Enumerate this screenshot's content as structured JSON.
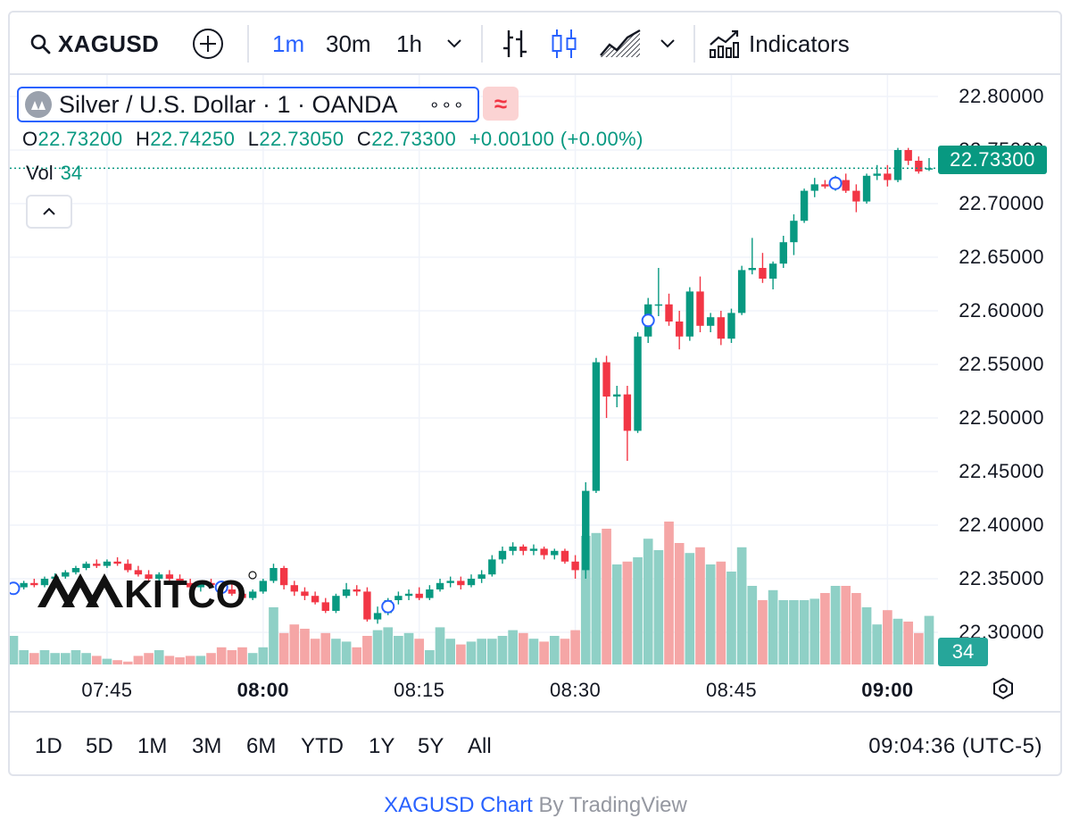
{
  "toolbar": {
    "symbol": "XAGUSD",
    "intervals": [
      "1m",
      "30m",
      "1h"
    ],
    "active_interval": "1m",
    "indicators_label": "Indicators"
  },
  "legend": {
    "title": "Silver / U.S. Dollar · 1 · OANDA",
    "more": "∘∘∘",
    "approx_badge": "≈",
    "open_key": "O",
    "open": "22.73200",
    "high_key": "H",
    "high": "22.74250",
    "low_key": "L",
    "low": "22.73050",
    "close_key": "C",
    "close": "22.73300",
    "change": "+0.00100 (+0.00%)",
    "vol_label": "Vol",
    "vol_value": "34"
  },
  "price_axis": {
    "labels": [
      "22.80000",
      "22.75000",
      "22.70000",
      "22.65000",
      "22.60000",
      "22.55000",
      "22.50000",
      "22.45000",
      "22.40000",
      "22.35000",
      "22.30000"
    ],
    "current_price": "22.73300",
    "current_volume": "34"
  },
  "time_axis": {
    "labels": [
      {
        "text": "07:45",
        "bold": false
      },
      {
        "text": "08:00",
        "bold": true
      },
      {
        "text": "08:15",
        "bold": false
      },
      {
        "text": "08:30",
        "bold": false
      },
      {
        "text": "08:45",
        "bold": false
      },
      {
        "text": "09:00",
        "bold": true
      }
    ]
  },
  "range_bar": {
    "ranges": [
      "1D",
      "5D",
      "1M",
      "3M",
      "6M",
      "YTD",
      "1Y",
      "5Y",
      "All"
    ],
    "clock": "09:04:36 (UTC-5)"
  },
  "watermark": {
    "logo_text": "KITCO"
  },
  "attribution": {
    "link": "XAGUSD Chart",
    "rest": " By TradingView"
  },
  "colors": {
    "up": "#089981",
    "down": "#f23645",
    "accent": "#2962ff",
    "vol_up": "#8fd0c6",
    "vol_down": "#f5a6a6",
    "grid": "#f0f3fa"
  },
  "chart_data": {
    "type": "candlestick",
    "interval": "1m",
    "ylim": [
      22.27,
      22.81
    ],
    "x_start": "07:36",
    "x_end": "09:04",
    "current_price": 22.733,
    "price_line_style": "dotted",
    "event_markers_at": [
      "07:36",
      "07:56",
      "08:12",
      "08:37",
      "08:55"
    ],
    "candles": [
      {
        "t": "07:36",
        "o": 22.34,
        "h": 22.345,
        "l": 22.338,
        "c": 22.342,
        "v": 20
      },
      {
        "t": "07:37",
        "o": 22.342,
        "h": 22.348,
        "l": 22.34,
        "c": 22.346,
        "v": 10
      },
      {
        "t": "07:38",
        "o": 22.346,
        "h": 22.35,
        "l": 22.342,
        "c": 22.344,
        "v": 8
      },
      {
        "t": "07:39",
        "o": 22.344,
        "h": 22.352,
        "l": 22.342,
        "c": 22.35,
        "v": 10
      },
      {
        "t": "07:40",
        "o": 22.35,
        "h": 22.355,
        "l": 22.346,
        "c": 22.352,
        "v": 8
      },
      {
        "t": "07:41",
        "o": 22.352,
        "h": 22.358,
        "l": 22.35,
        "c": 22.356,
        "v": 8
      },
      {
        "t": "07:42",
        "o": 22.356,
        "h": 22.362,
        "l": 22.354,
        "c": 22.36,
        "v": 10
      },
      {
        "t": "07:43",
        "o": 22.36,
        "h": 22.366,
        "l": 22.358,
        "c": 22.364,
        "v": 8
      },
      {
        "t": "07:44",
        "o": 22.364,
        "h": 22.368,
        "l": 22.36,
        "c": 22.362,
        "v": 6
      },
      {
        "t": "07:45",
        "o": 22.362,
        "h": 22.368,
        "l": 22.36,
        "c": 22.366,
        "v": 4
      },
      {
        "t": "07:46",
        "o": 22.366,
        "h": 22.37,
        "l": 22.362,
        "c": 22.364,
        "v": 3
      },
      {
        "t": "07:47",
        "o": 22.364,
        "h": 22.368,
        "l": 22.356,
        "c": 22.358,
        "v": 2
      },
      {
        "t": "07:48",
        "o": 22.358,
        "h": 22.362,
        "l": 22.352,
        "c": 22.354,
        "v": 6
      },
      {
        "t": "07:49",
        "o": 22.354,
        "h": 22.358,
        "l": 22.348,
        "c": 22.35,
        "v": 8
      },
      {
        "t": "07:50",
        "o": 22.35,
        "h": 22.356,
        "l": 22.346,
        "c": 22.354,
        "v": 10
      },
      {
        "t": "07:51",
        "o": 22.354,
        "h": 22.358,
        "l": 22.348,
        "c": 22.35,
        "v": 6
      },
      {
        "t": "07:52",
        "o": 22.35,
        "h": 22.354,
        "l": 22.344,
        "c": 22.346,
        "v": 5
      },
      {
        "t": "07:53",
        "o": 22.346,
        "h": 22.35,
        "l": 22.34,
        "c": 22.342,
        "v": 6
      },
      {
        "t": "07:54",
        "o": 22.342,
        "h": 22.348,
        "l": 22.338,
        "c": 22.346,
        "v": 6
      },
      {
        "t": "07:55",
        "o": 22.346,
        "h": 22.35,
        "l": 22.342,
        "c": 22.344,
        "v": 8
      },
      {
        "t": "07:56",
        "o": 22.344,
        "h": 22.348,
        "l": 22.338,
        "c": 22.34,
        "v": 12
      },
      {
        "t": "07:57",
        "o": 22.34,
        "h": 22.346,
        "l": 22.334,
        "c": 22.336,
        "v": 10
      },
      {
        "t": "07:58",
        "o": 22.336,
        "h": 22.342,
        "l": 22.33,
        "c": 22.332,
        "v": 12
      },
      {
        "t": "07:59",
        "o": 22.332,
        "h": 22.34,
        "l": 22.33,
        "c": 22.338,
        "v": 8
      },
      {
        "t": "08:00",
        "o": 22.338,
        "h": 22.35,
        "l": 22.336,
        "c": 22.348,
        "v": 12
      },
      {
        "t": "08:01",
        "o": 22.348,
        "h": 22.364,
        "l": 22.346,
        "c": 22.36,
        "v": 40
      },
      {
        "t": "08:02",
        "o": 22.36,
        "h": 22.362,
        "l": 22.34,
        "c": 22.344,
        "v": 22
      },
      {
        "t": "08:03",
        "o": 22.344,
        "h": 22.348,
        "l": 22.334,
        "c": 22.338,
        "v": 28
      },
      {
        "t": "08:04",
        "o": 22.338,
        "h": 22.342,
        "l": 22.33,
        "c": 22.334,
        "v": 25
      },
      {
        "t": "08:05",
        "o": 22.334,
        "h": 22.338,
        "l": 22.326,
        "c": 22.328,
        "v": 18
      },
      {
        "t": "08:06",
        "o": 22.328,
        "h": 22.332,
        "l": 22.318,
        "c": 22.32,
        "v": 22
      },
      {
        "t": "08:07",
        "o": 22.32,
        "h": 22.336,
        "l": 22.318,
        "c": 22.334,
        "v": 18
      },
      {
        "t": "08:08",
        "o": 22.334,
        "h": 22.346,
        "l": 22.332,
        "c": 22.34,
        "v": 16
      },
      {
        "t": "08:09",
        "o": 22.34,
        "h": 22.344,
        "l": 22.334,
        "c": 22.338,
        "v": 12
      },
      {
        "t": "08:10",
        "o": 22.338,
        "h": 22.342,
        "l": 22.31,
        "c": 22.312,
        "v": 20
      },
      {
        "t": "08:11",
        "o": 22.312,
        "h": 22.324,
        "l": 22.308,
        "c": 22.318,
        "v": 24
      },
      {
        "t": "08:12",
        "o": 22.318,
        "h": 22.332,
        "l": 22.316,
        "c": 22.33,
        "v": 26
      },
      {
        "t": "08:13",
        "o": 22.33,
        "h": 22.338,
        "l": 22.326,
        "c": 22.334,
        "v": 20
      },
      {
        "t": "08:14",
        "o": 22.334,
        "h": 22.34,
        "l": 22.33,
        "c": 22.336,
        "v": 22
      },
      {
        "t": "08:15",
        "o": 22.336,
        "h": 22.342,
        "l": 22.33,
        "c": 22.332,
        "v": 18
      },
      {
        "t": "08:16",
        "o": 22.332,
        "h": 22.344,
        "l": 22.33,
        "c": 22.34,
        "v": 10
      },
      {
        "t": "08:17",
        "o": 22.34,
        "h": 22.35,
        "l": 22.338,
        "c": 22.346,
        "v": 26
      },
      {
        "t": "08:18",
        "o": 22.346,
        "h": 22.352,
        "l": 22.342,
        "c": 22.348,
        "v": 18
      },
      {
        "t": "08:19",
        "o": 22.348,
        "h": 22.352,
        "l": 22.34,
        "c": 22.344,
        "v": 14
      },
      {
        "t": "08:20",
        "o": 22.344,
        "h": 22.354,
        "l": 22.342,
        "c": 22.35,
        "v": 16
      },
      {
        "t": "08:21",
        "o": 22.35,
        "h": 22.358,
        "l": 22.346,
        "c": 22.354,
        "v": 18
      },
      {
        "t": "08:22",
        "o": 22.354,
        "h": 22.372,
        "l": 22.352,
        "c": 22.368,
        "v": 18
      },
      {
        "t": "08:23",
        "o": 22.368,
        "h": 22.38,
        "l": 22.364,
        "c": 22.376,
        "v": 20
      },
      {
        "t": "08:24",
        "o": 22.376,
        "h": 22.384,
        "l": 22.372,
        "c": 22.38,
        "v": 24
      },
      {
        "t": "08:25",
        "o": 22.38,
        "h": 22.382,
        "l": 22.372,
        "c": 22.376,
        "v": 22
      },
      {
        "t": "08:26",
        "o": 22.376,
        "h": 22.382,
        "l": 22.372,
        "c": 22.378,
        "v": 18
      },
      {
        "t": "08:27",
        "o": 22.378,
        "h": 22.38,
        "l": 22.368,
        "c": 22.372,
        "v": 16
      },
      {
        "t": "08:28",
        "o": 22.372,
        "h": 22.378,
        "l": 22.368,
        "c": 22.376,
        "v": 20
      },
      {
        "t": "08:29",
        "o": 22.376,
        "h": 22.378,
        "l": 22.364,
        "c": 22.366,
        "v": 18
      },
      {
        "t": "08:30",
        "o": 22.366,
        "h": 22.372,
        "l": 22.35,
        "c": 22.358,
        "v": 24
      },
      {
        "t": "08:31",
        "o": 22.358,
        "h": 22.44,
        "l": 22.35,
        "c": 22.432,
        "v": 90
      },
      {
        "t": "08:32",
        "o": 22.432,
        "h": 22.556,
        "l": 22.43,
        "c": 22.552,
        "v": 92
      },
      {
        "t": "08:33",
        "o": 22.552,
        "h": 22.558,
        "l": 22.5,
        "c": 22.52,
        "v": 95
      },
      {
        "t": "08:34",
        "o": 22.52,
        "h": 22.53,
        "l": 22.51,
        "c": 22.522,
        "v": 70
      },
      {
        "t": "08:35",
        "o": 22.522,
        "h": 22.53,
        "l": 22.46,
        "c": 22.488,
        "v": 72
      },
      {
        "t": "08:36",
        "o": 22.488,
        "h": 22.58,
        "l": 22.486,
        "c": 22.576,
        "v": 75
      },
      {
        "t": "08:37",
        "o": 22.576,
        "h": 22.612,
        "l": 22.57,
        "c": 22.606,
        "v": 88
      },
      {
        "t": "08:38",
        "o": 22.606,
        "h": 22.64,
        "l": 22.595,
        "c": 22.606,
        "v": 80
      },
      {
        "t": "08:39",
        "o": 22.606,
        "h": 22.616,
        "l": 22.586,
        "c": 22.59,
        "v": 100
      },
      {
        "t": "08:40",
        "o": 22.59,
        "h": 22.6,
        "l": 22.564,
        "c": 22.576,
        "v": 85
      },
      {
        "t": "08:41",
        "o": 22.576,
        "h": 22.622,
        "l": 22.572,
        "c": 22.618,
        "v": 78
      },
      {
        "t": "08:42",
        "o": 22.618,
        "h": 22.632,
        "l": 22.58,
        "c": 22.586,
        "v": 82
      },
      {
        "t": "08:43",
        "o": 22.586,
        "h": 22.598,
        "l": 22.58,
        "c": 22.594,
        "v": 70
      },
      {
        "t": "08:44",
        "o": 22.594,
        "h": 22.6,
        "l": 22.568,
        "c": 22.574,
        "v": 72
      },
      {
        "t": "08:45",
        "o": 22.574,
        "h": 22.602,
        "l": 22.57,
        "c": 22.598,
        "v": 65
      },
      {
        "t": "08:46",
        "o": 22.598,
        "h": 22.642,
        "l": 22.596,
        "c": 22.638,
        "v": 82
      },
      {
        "t": "08:47",
        "o": 22.638,
        "h": 22.668,
        "l": 22.634,
        "c": 22.64,
        "v": 55
      },
      {
        "t": "08:48",
        "o": 22.64,
        "h": 22.654,
        "l": 22.626,
        "c": 22.63,
        "v": 45
      },
      {
        "t": "08:49",
        "o": 22.63,
        "h": 22.646,
        "l": 22.62,
        "c": 22.644,
        "v": 52
      },
      {
        "t": "08:50",
        "o": 22.644,
        "h": 22.67,
        "l": 22.64,
        "c": 22.664,
        "v": 45
      },
      {
        "t": "08:51",
        "o": 22.664,
        "h": 22.69,
        "l": 22.652,
        "c": 22.684,
        "v": 45
      },
      {
        "t": "08:52",
        "o": 22.684,
        "h": 22.714,
        "l": 22.682,
        "c": 22.712,
        "v": 45
      },
      {
        "t": "08:53",
        "o": 22.712,
        "h": 22.724,
        "l": 22.706,
        "c": 22.718,
        "v": 46
      },
      {
        "t": "08:54",
        "o": 22.718,
        "h": 22.722,
        "l": 22.714,
        "c": 22.716,
        "v": 50
      },
      {
        "t": "08:55",
        "o": 22.716,
        "h": 22.726,
        "l": 22.712,
        "c": 22.722,
        "v": 55
      },
      {
        "t": "08:56",
        "o": 22.722,
        "h": 22.728,
        "l": 22.71,
        "c": 22.712,
        "v": 55
      },
      {
        "t": "08:57",
        "o": 22.712,
        "h": 22.718,
        "l": 22.692,
        "c": 22.702,
        "v": 50
      },
      {
        "t": "08:58",
        "o": 22.702,
        "h": 22.728,
        "l": 22.7,
        "c": 22.726,
        "v": 40
      },
      {
        "t": "08:59",
        "o": 22.726,
        "h": 22.736,
        "l": 22.722,
        "c": 22.728,
        "v": 28
      },
      {
        "t": "09:00",
        "o": 22.728,
        "h": 22.736,
        "l": 22.716,
        "c": 22.722,
        "v": 38
      },
      {
        "t": "09:01",
        "o": 22.722,
        "h": 22.752,
        "l": 22.72,
        "c": 22.75,
        "v": 32
      },
      {
        "t": "09:02",
        "o": 22.75,
        "h": 22.752,
        "l": 22.736,
        "c": 22.74,
        "v": 30
      },
      {
        "t": "09:03",
        "o": 22.74,
        "h": 22.744,
        "l": 22.728,
        "c": 22.73,
        "v": 22
      },
      {
        "t": "09:04",
        "o": 22.732,
        "h": 22.7425,
        "l": 22.7305,
        "c": 22.733,
        "v": 34
      }
    ],
    "price_axis_labels": [
      22.8,
      22.75,
      22.7,
      22.65,
      22.6,
      22.55,
      22.5,
      22.45,
      22.4,
      22.35,
      22.3
    ],
    "time_axis_labels": [
      "07:45",
      "08:00",
      "08:15",
      "08:30",
      "08:45",
      "09:00"
    ]
  }
}
